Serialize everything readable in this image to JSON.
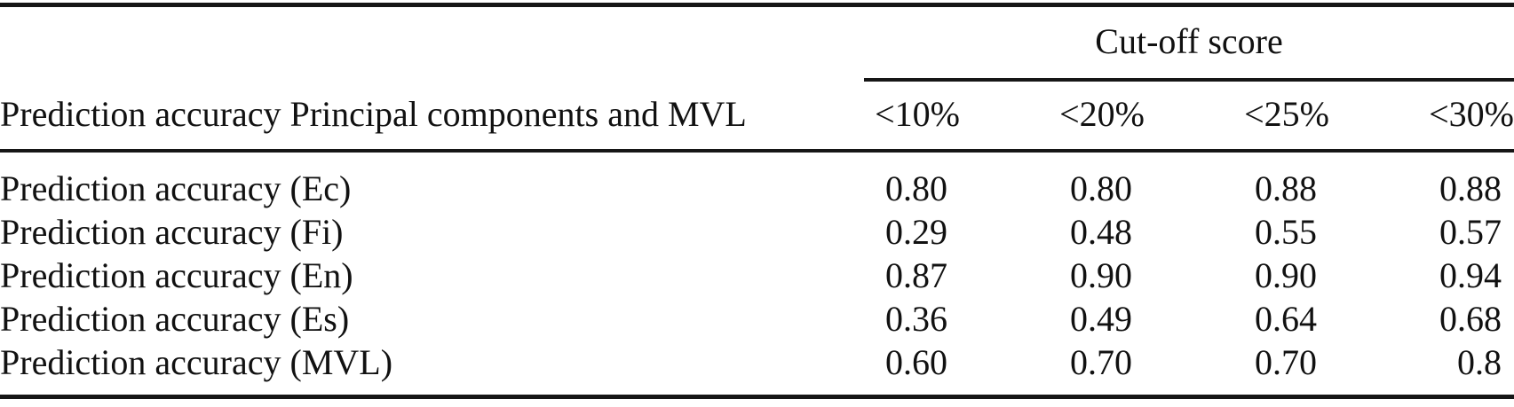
{
  "table": {
    "group_header": "Cut-off score",
    "stub_header": "Prediction accuracy Principal components and MVL",
    "columns": [
      "<10%",
      "<20%",
      "<25%",
      "<30%"
    ],
    "rows": [
      {
        "label": "Prediction accuracy (Ec)",
        "values": [
          "0.80",
          "0.80",
          "0.88",
          "0.88"
        ]
      },
      {
        "label": "Prediction accuracy (Fi)",
        "values": [
          "0.29",
          "0.48",
          "0.55",
          "0.57"
        ]
      },
      {
        "label": "Prediction accuracy (En)",
        "values": [
          "0.87",
          "0.90",
          "0.90",
          "0.94"
        ]
      },
      {
        "label": "Prediction accuracy (Es)",
        "values": [
          "0.36",
          "0.49",
          "0.64",
          "0.68"
        ]
      },
      {
        "label": "Prediction accuracy (MVL)",
        "values": [
          "0.60",
          "0.70",
          "0.70",
          "0.8"
        ]
      }
    ]
  }
}
